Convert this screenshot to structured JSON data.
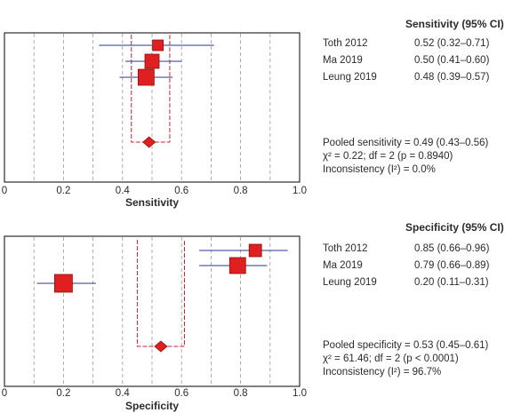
{
  "chart_data": [
    {
      "type": "forest",
      "xlabel": "Sensitivity",
      "column_header": "Sensitivity (95% CI)",
      "xlim": [
        0,
        1.0
      ],
      "ticks": [
        "0",
        "0.2",
        "0.4",
        "0.6",
        "0.8",
        "1.0"
      ],
      "studies": [
        {
          "name": "Toth 2012",
          "estimate": 0.52,
          "lower": 0.32,
          "upper": 0.71,
          "label": "0.52 (0.32–0.71)"
        },
        {
          "name": "Ma 2019",
          "estimate": 0.5,
          "lower": 0.41,
          "upper": 0.6,
          "label": "0.50 (0.41–0.60)"
        },
        {
          "name": "Leung 2019",
          "estimate": 0.48,
          "lower": 0.39,
          "upper": 0.57,
          "label": "0.48 (0.39–0.57)"
        }
      ],
      "pooled": {
        "estimate": 0.49,
        "lower": 0.43,
        "upper": 0.56
      },
      "pooled_lines": [
        "Pooled sensitivity = 0.49 (0.43–0.56)",
        "χ² = 0.22; df = 2 (p = 0.8940)",
        "Inconsistency (I²) = 0.0%"
      ]
    },
    {
      "type": "forest",
      "xlabel": "Specificity",
      "column_header": "Specificity (95% CI)",
      "xlim": [
        0,
        1.0
      ],
      "ticks": [
        "0",
        "0.2",
        "0.4",
        "0.6",
        "0.8",
        "1.0"
      ],
      "studies": [
        {
          "name": "Toth 2012",
          "estimate": 0.85,
          "lower": 0.66,
          "upper": 0.96,
          "label": "0.85 (0.66–0.96)"
        },
        {
          "name": "Ma 2019",
          "estimate": 0.79,
          "lower": 0.66,
          "upper": 0.89,
          "label": "0.79 (0.66–0.89)"
        },
        {
          "name": "Leung 2019",
          "estimate": 0.2,
          "lower": 0.11,
          "upper": 0.31,
          "label": "0.20 (0.11–0.31)"
        }
      ],
      "pooled": {
        "estimate": 0.53,
        "lower": 0.45,
        "upper": 0.61
      },
      "pooled_lines": [
        "Pooled specificity = 0.53 (0.45–0.61)",
        "χ² = 61.46; df = 2 (p < 0.0001)",
        "Inconsistency (I²) = 96.7%"
      ]
    }
  ],
  "colors": {
    "marker_fill": "#e02020",
    "marker_stroke": "#8a1010",
    "ci_line": "#2a3a8c",
    "pooled_dash": "#c0282d",
    "grid": "#9a9a9a",
    "frame": "#2b2b2b"
  }
}
